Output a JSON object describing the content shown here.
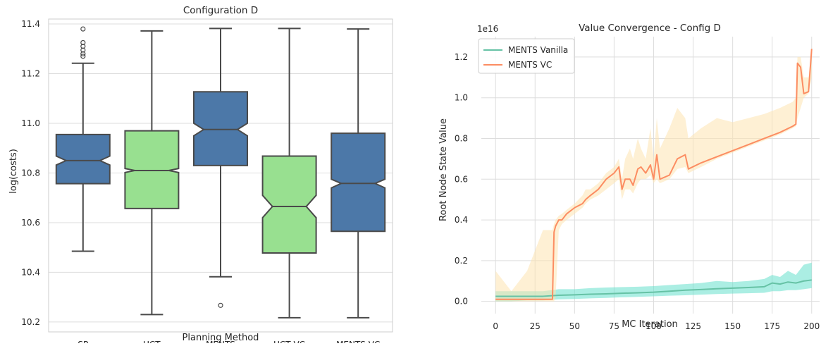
{
  "chart_data": [
    {
      "type": "box",
      "title": "Configuration D",
      "xlabel": "Planning Method",
      "ylabel": "log(costs)",
      "ylim": [
        10.16,
        11.42
      ],
      "yticks": [
        "10.2",
        "10.4",
        "10.6",
        "10.8",
        "11.0",
        "11.2",
        "11.4"
      ],
      "grid": true,
      "notched": true,
      "categories": [
        "SP",
        "UCT",
        "MENTS",
        "UCT VC",
        "MENTS VC"
      ],
      "colors": [
        "#4c78a8",
        "#98e090",
        "#4c78a8",
        "#98e090",
        "#4c78a8"
      ],
      "boxes": [
        {
          "category": "SP",
          "whisker_low": 10.485,
          "q1": 10.757,
          "median": 10.85,
          "q3": 10.955,
          "whisker_high": 11.242,
          "notch_low": 10.832,
          "notch_high": 10.868,
          "outliers": [
            11.27,
            11.28,
            11.295,
            11.31,
            11.325,
            11.38
          ]
        },
        {
          "category": "UCT",
          "whisker_low": 10.23,
          "q1": 10.657,
          "median": 10.81,
          "q3": 10.97,
          "whisker_high": 11.372,
          "notch_low": 10.802,
          "notch_high": 10.818,
          "outliers": []
        },
        {
          "category": "MENTS",
          "whisker_low": 10.382,
          "q1": 10.83,
          "median": 10.975,
          "q3": 11.127,
          "whisker_high": 11.382,
          "notch_low": 10.95,
          "notch_high": 11.0,
          "outliers": [
            10.267
          ]
        },
        {
          "category": "UCT VC",
          "whisker_low": 10.217,
          "q1": 10.478,
          "median": 10.665,
          "q3": 10.868,
          "whisker_high": 11.382,
          "notch_low": 10.62,
          "notch_high": 10.71,
          "outliers": []
        },
        {
          "category": "MENTS VC",
          "whisker_low": 10.217,
          "q1": 10.565,
          "median": 10.758,
          "q3": 10.96,
          "whisker_high": 11.38,
          "notch_low": 10.74,
          "notch_high": 10.775,
          "outliers": []
        }
      ]
    },
    {
      "type": "line",
      "title": "Value Convergence - Config D",
      "xlabel": "MC Iteration",
      "ylabel": "Root Node State Value",
      "scale_label": "1e16",
      "xlim": [
        -9,
        205
      ],
      "ylim": [
        -0.06,
        1.3
      ],
      "xticks": [
        "0",
        "25",
        "50",
        "75",
        "100",
        "125",
        "150",
        "175",
        "200"
      ],
      "yticks": [
        "0.0",
        "0.2",
        "0.4",
        "0.6",
        "0.8",
        "1.0",
        "1.2"
      ],
      "grid": true,
      "legend": "upper-left",
      "series": [
        {
          "name": "MENTS Vanilla",
          "color": "#66c2a5",
          "band_color": "#66e0cc",
          "points": [
            [
              0,
              0.025
            ],
            [
              10,
              0.025
            ],
            [
              20,
              0.025
            ],
            [
              30,
              0.025
            ],
            [
              40,
              0.03
            ],
            [
              50,
              0.032
            ],
            [
              60,
              0.035
            ],
            [
              70,
              0.037
            ],
            [
              80,
              0.04
            ],
            [
              90,
              0.042
            ],
            [
              100,
              0.045
            ],
            [
              110,
              0.05
            ],
            [
              120,
              0.055
            ],
            [
              130,
              0.058
            ],
            [
              140,
              0.062
            ],
            [
              150,
              0.065
            ],
            [
              160,
              0.068
            ],
            [
              170,
              0.072
            ],
            [
              175,
              0.09
            ],
            [
              180,
              0.085
            ],
            [
              185,
              0.095
            ],
            [
              190,
              0.09
            ],
            [
              195,
              0.1
            ],
            [
              200,
              0.105
            ]
          ],
          "band_low": [
            0.0,
            0.0,
            0.005,
            0.005,
            0.01,
            0.012,
            0.015,
            0.017,
            0.02,
            0.022,
            0.025,
            0.028,
            0.03,
            0.033,
            0.036,
            0.038,
            0.04,
            0.042,
            0.05,
            0.05,
            0.055,
            0.055,
            0.06,
            0.065
          ],
          "band_high": [
            0.05,
            0.05,
            0.05,
            0.05,
            0.06,
            0.06,
            0.065,
            0.068,
            0.07,
            0.072,
            0.075,
            0.08,
            0.085,
            0.09,
            0.1,
            0.095,
            0.1,
            0.11,
            0.13,
            0.12,
            0.15,
            0.13,
            0.18,
            0.19
          ]
        },
        {
          "name": "MENTS VC",
          "color": "#fc8d62",
          "band_color": "#fde3b0",
          "points": [
            [
              0,
              0.01
            ],
            [
              10,
              0.01
            ],
            [
              20,
              0.01
            ],
            [
              30,
              0.01
            ],
            [
              36,
              0.01
            ],
            [
              37,
              0.34
            ],
            [
              38,
              0.37
            ],
            [
              40,
              0.4
            ],
            [
              42,
              0.4
            ],
            [
              45,
              0.43
            ],
            [
              50,
              0.46
            ],
            [
              55,
              0.48
            ],
            [
              57,
              0.5
            ],
            [
              60,
              0.52
            ],
            [
              65,
              0.55
            ],
            [
              70,
              0.6
            ],
            [
              75,
              0.63
            ],
            [
              78,
              0.66
            ],
            [
              80,
              0.55
            ],
            [
              82,
              0.6
            ],
            [
              85,
              0.6
            ],
            [
              87,
              0.57
            ],
            [
              90,
              0.65
            ],
            [
              92,
              0.66
            ],
            [
              95,
              0.63
            ],
            [
              98,
              0.67
            ],
            [
              100,
              0.6
            ],
            [
              102,
              0.72
            ],
            [
              104,
              0.6
            ],
            [
              110,
              0.62
            ],
            [
              115,
              0.7
            ],
            [
              120,
              0.72
            ],
            [
              122,
              0.65
            ],
            [
              130,
              0.68
            ],
            [
              140,
              0.71
            ],
            [
              150,
              0.74
            ],
            [
              160,
              0.77
            ],
            [
              170,
              0.8
            ],
            [
              180,
              0.83
            ],
            [
              188,
              0.86
            ],
            [
              190,
              0.87
            ],
            [
              191,
              1.17
            ],
            [
              193,
              1.15
            ],
            [
              195,
              1.02
            ],
            [
              198,
              1.03
            ],
            [
              200,
              1.24
            ]
          ],
          "band_low": [
            0.0,
            0.0,
            0.0,
            0.0,
            0.0,
            0.0,
            0.02,
            0.35,
            0.38,
            0.4,
            0.43,
            0.46,
            0.48,
            0.5,
            0.52,
            0.55,
            0.58,
            0.6,
            0.5,
            0.55,
            0.55,
            0.53,
            0.58,
            0.6,
            0.6,
            0.62,
            0.58,
            0.6,
            0.58,
            0.6,
            0.65,
            0.66,
            0.63,
            0.66,
            0.7,
            0.73,
            0.76,
            0.79,
            0.82,
            0.85,
            0.86,
            0.9,
            0.95,
            1.0,
            1.02,
            1.1
          ],
          "band_high": [
            0.15,
            0.05,
            0.15,
            0.35,
            0.35,
            0.38,
            0.4,
            0.42,
            0.43,
            0.45,
            0.48,
            0.52,
            0.55,
            0.55,
            0.58,
            0.63,
            0.66,
            0.7,
            0.6,
            0.7,
            0.75,
            0.7,
            0.8,
            0.75,
            0.7,
            0.85,
            0.7,
            0.9,
            0.75,
            0.85,
            0.95,
            0.9,
            0.8,
            0.85,
            0.9,
            0.88,
            0.9,
            0.92,
            0.95,
            0.98,
            1.0,
            1.2,
            1.2,
            1.1,
            1.1,
            1.25
          ]
        }
      ]
    }
  ]
}
